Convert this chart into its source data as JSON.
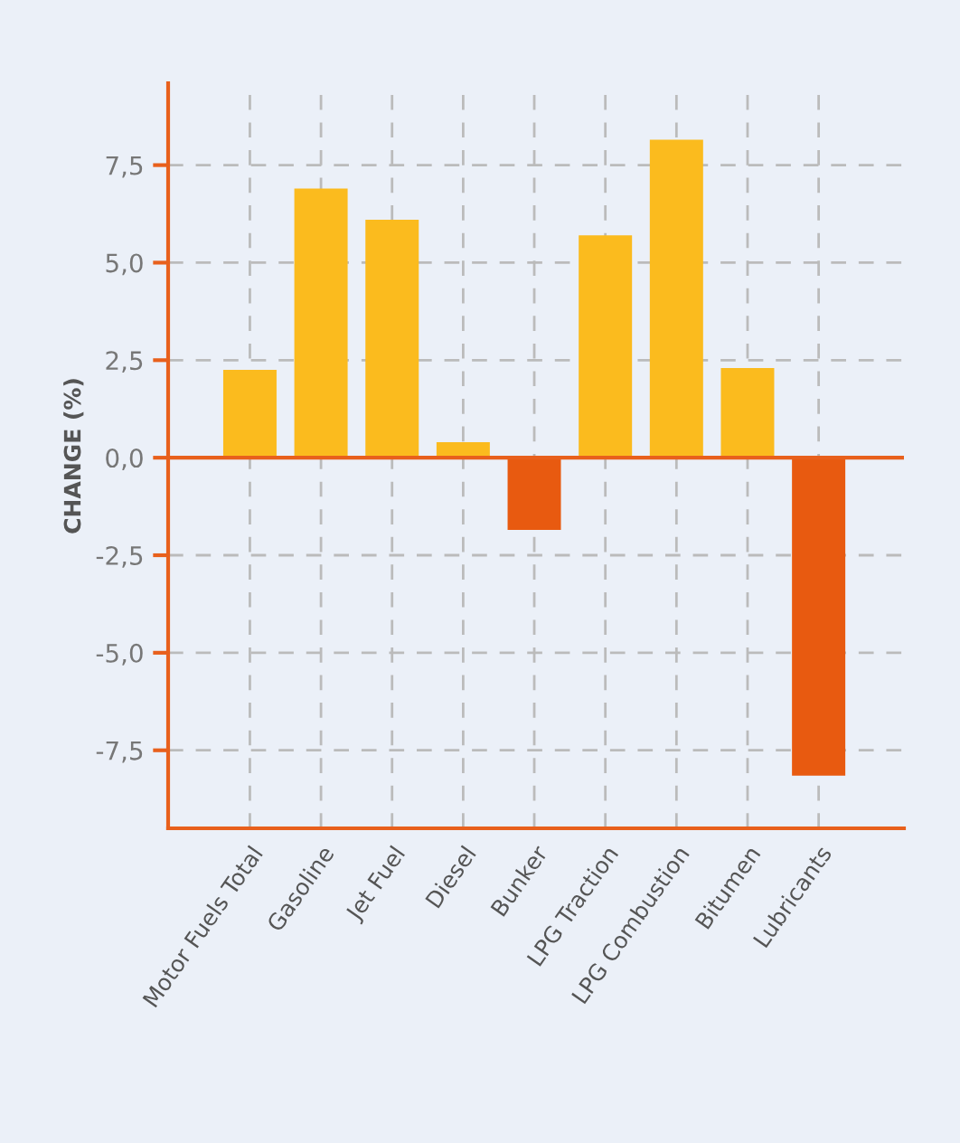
{
  "chart_data": {
    "type": "bar",
    "ylabel": "CHANGE (%)",
    "categories": [
      "Motor Fuels Total",
      "Gasoline",
      "Jet Fuel",
      "Diesel",
      "Bunker",
      "LPG Traction",
      "LPG Combustion",
      "Bitumen",
      "Lubricants"
    ],
    "values": [
      2.25,
      6.9,
      6.1,
      0.4,
      -1.85,
      5.7,
      8.15,
      2.3,
      -8.15
    ],
    "colors": [
      "#fbbb1e",
      "#fbbb1e",
      "#fbbb1e",
      "#fbbb1e",
      "#e85a10",
      "#fbbb1e",
      "#fbbb1e",
      "#fbbb1e",
      "#e85a10"
    ],
    "ylim": [
      -9.5,
      9.6
    ],
    "yticks": [
      {
        "value": -7.5,
        "label": "-7,5"
      },
      {
        "value": -5.0,
        "label": "-5,0"
      },
      {
        "value": -2.5,
        "label": "-2,5"
      },
      {
        "value": 0.0,
        "label": "0,0"
      },
      {
        "value": 2.5,
        "label": "2,5"
      },
      {
        "value": 5.0,
        "label": "5,0"
      },
      {
        "value": 7.5,
        "label": "7,5"
      }
    ],
    "ref_lines": [
      {
        "axis": "y",
        "value": 0,
        "color": "#e8601c"
      }
    ],
    "grid": true,
    "legend": false
  }
}
